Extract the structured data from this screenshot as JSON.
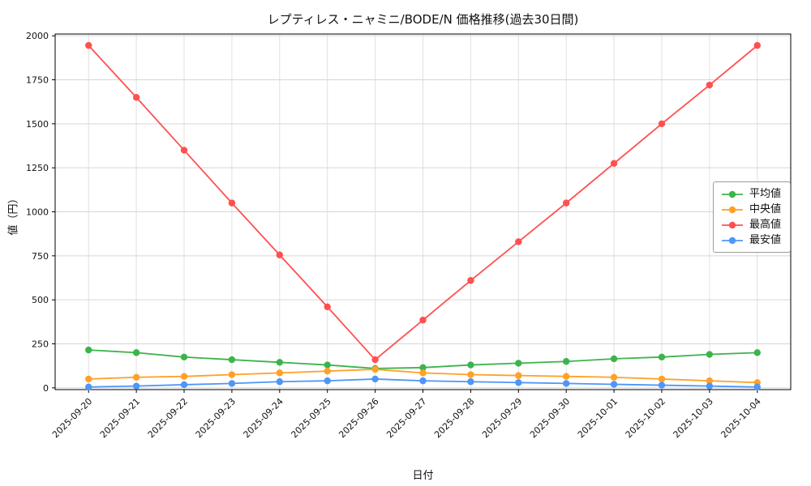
{
  "chart_data": {
    "type": "line",
    "title": "レプティレス・ニャミニ/BODE/N 価格推移(過去30日間)",
    "xlabel": "日付",
    "ylabel": "値（円）",
    "grid": true,
    "legend_position": "center right",
    "x": [
      "2025-09-20",
      "2025-09-21",
      "2025-09-22",
      "2025-09-23",
      "2025-09-24",
      "2025-09-25",
      "2025-09-26",
      "2025-09-27",
      "2025-09-28",
      "2025-09-29",
      "2025-09-30",
      "2025-10-01",
      "2025-10-02",
      "2025-10-03",
      "2025-10-04"
    ],
    "yticks": [
      0,
      250,
      500,
      750,
      1000,
      1250,
      1500,
      1750,
      2000
    ],
    "ylim": [
      -10,
      2010
    ],
    "series": [
      {
        "name": "平均値",
        "color": "#3cb44b",
        "values": [
          215,
          200,
          175,
          160,
          145,
          130,
          110,
          115,
          130,
          140,
          150,
          165,
          175,
          190,
          200
        ]
      },
      {
        "name": "中央値",
        "color": "#ffa126",
        "values": [
          50,
          60,
          65,
          75,
          85,
          95,
          105,
          85,
          75,
          70,
          65,
          60,
          50,
          40,
          30
        ]
      },
      {
        "name": "最高値",
        "color": "#ff5050",
        "values": [
          1945,
          1650,
          1350,
          1050,
          755,
          460,
          160,
          385,
          610,
          830,
          1050,
          1275,
          1500,
          1720,
          1945
        ]
      },
      {
        "name": "最安値",
        "color": "#4e96f7",
        "values": [
          5,
          10,
          18,
          25,
          35,
          40,
          50,
          40,
          35,
          30,
          25,
          20,
          15,
          10,
          5
        ]
      }
    ]
  }
}
